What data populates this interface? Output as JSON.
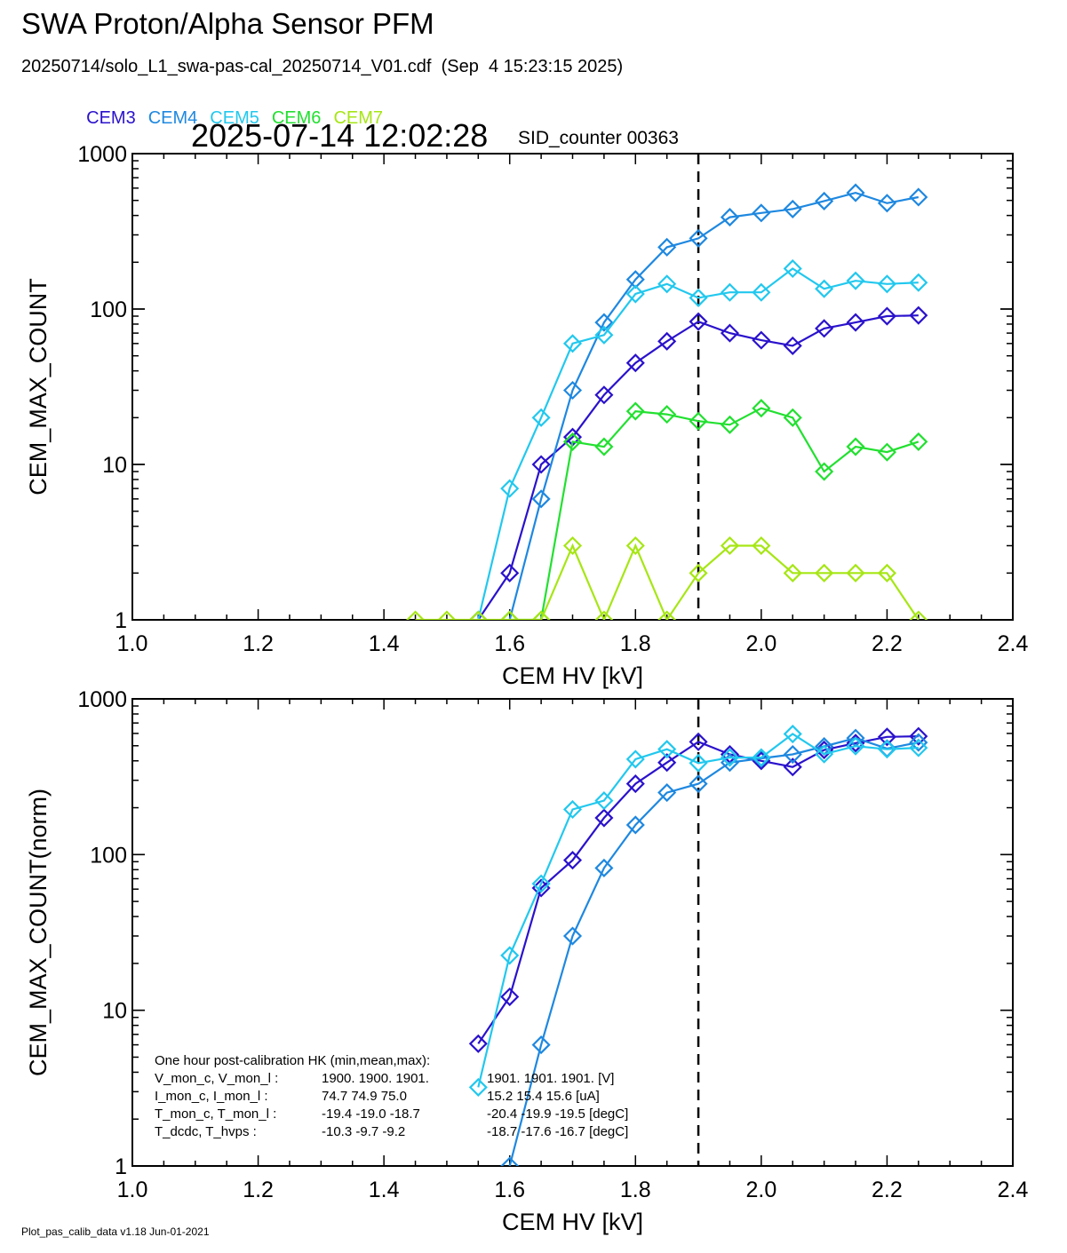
{
  "header": {
    "title": "SWA Proton/Alpha Sensor PFM",
    "subtitle": "20250714/solo_L1_swa-pas-cal_20250714_V01.cdf  (Sep  4 15:23:15 2025)",
    "timestamp": "2025-07-14 12:02:28",
    "sid_counter": "SID_counter 00363"
  },
  "legend": [
    {
      "label": "CEM3",
      "color": "#2a12cc"
    },
    {
      "label": "CEM4",
      "color": "#1e88e0"
    },
    {
      "label": "CEM5",
      "color": "#22c8ee"
    },
    {
      "label": "CEM6",
      "color": "#22e030"
    },
    {
      "label": "CEM7",
      "color": "#a6e614"
    }
  ],
  "hk_box": {
    "title": "One hour post-calibration HK (min,mean,max):",
    "rows": [
      {
        "label": "V_mon_c, V_mon_l :",
        "a": "1900.  1900.  1901.",
        "b": "1901.  1901.  1901. [V]"
      },
      {
        "label": "I_mon_c,  I_mon_l :",
        "a": "74.7   74.9   75.0",
        "b": "15.2   15.4   15.6  [uA]"
      },
      {
        "label": "T_mon_c, T_mon_l :",
        "a": "-19.4  -19.0  -18.7",
        "b": "-20.4  -19.9  -19.5  [degC]"
      },
      {
        "label": "T_dcdc,    T_hvps :",
        "a": "-10.3   -9.7   -9.2",
        "b": "-18.7  -17.6  -16.7  [degC]"
      }
    ]
  },
  "footer": "Plot_pas_calib_data v1.18 Jun-01-2021",
  "chart_data": [
    {
      "type": "line",
      "xlabel": "CEM HV [kV]",
      "ylabel": "CEM_MAX_COUNT",
      "xlim": [
        1.0,
        2.4
      ],
      "ylim": [
        1,
        1000
      ],
      "yscale": "log",
      "xticks": [
        "1.0",
        "1.2",
        "1.4",
        "1.6",
        "1.8",
        "2.0",
        "2.2",
        "2.4"
      ],
      "yticks": [
        "1",
        "10",
        "100",
        "1000"
      ],
      "vline_x": 1.9,
      "series": [
        {
          "name": "CEM3",
          "color": "#2a12cc",
          "x": [
            1.55,
            1.6,
            1.65,
            1.7,
            1.75,
            1.8,
            1.85,
            1.9,
            1.95,
            2.0,
            2.05,
            2.1,
            2.15,
            2.2,
            2.25
          ],
          "y": [
            1,
            2,
            10,
            15,
            28,
            45,
            62,
            83,
            70,
            63,
            58,
            75,
            82,
            90,
            91
          ]
        },
        {
          "name": "CEM4",
          "color": "#1e88e0",
          "x": [
            1.6,
            1.65,
            1.7,
            1.75,
            1.8,
            1.85,
            1.9,
            1.95,
            2.0,
            2.05,
            2.1,
            2.15,
            2.2,
            2.25
          ],
          "y": [
            1,
            6,
            30,
            82,
            155,
            250,
            285,
            390,
            415,
            440,
            495,
            560,
            480,
            525
          ]
        },
        {
          "name": "CEM5",
          "color": "#22c8ee",
          "x": [
            1.55,
            1.6,
            1.65,
            1.7,
            1.75,
            1.8,
            1.85,
            1.9,
            1.95,
            2.0,
            2.05,
            2.1,
            2.15,
            2.2,
            2.25
          ],
          "y": [
            1,
            7,
            20,
            60,
            68,
            125,
            145,
            118,
            128,
            128,
            182,
            135,
            152,
            145,
            148
          ]
        },
        {
          "name": "CEM6",
          "color": "#22e030",
          "x": [
            1.6,
            1.65,
            1.7,
            1.75,
            1.8,
            1.85,
            1.9,
            1.95,
            2.0,
            2.05,
            2.1,
            2.15,
            2.2,
            2.25
          ],
          "y": [
            1,
            1,
            14,
            13,
            22,
            21,
            19,
            18,
            23,
            20,
            9,
            13,
            12,
            14
          ]
        },
        {
          "name": "CEM7",
          "color": "#a6e614",
          "x": [
            1.45,
            1.5,
            1.55,
            1.6,
            1.65,
            1.7,
            1.75,
            1.8,
            1.85,
            1.9,
            1.95,
            2.0,
            2.05,
            2.1,
            2.15,
            2.2,
            2.25
          ],
          "y": [
            1,
            1,
            1,
            1,
            1,
            3,
            1,
            3,
            1,
            2,
            3,
            3,
            2,
            2,
            2,
            2,
            1
          ]
        }
      ]
    },
    {
      "type": "line",
      "xlabel": "CEM HV [kV]",
      "ylabel": "CEM_MAX_COUNT(norm)",
      "xlim": [
        1.0,
        2.4
      ],
      "ylim": [
        1,
        1000
      ],
      "yscale": "log",
      "xticks": [
        "1.0",
        "1.2",
        "1.4",
        "1.6",
        "1.8",
        "2.0",
        "2.2",
        "2.4"
      ],
      "yticks": [
        "1",
        "10",
        "100",
        "1000"
      ],
      "vline_x": 1.9,
      "series": [
        {
          "name": "CEM3",
          "color": "#2a12cc",
          "x": [
            1.55,
            1.6,
            1.65,
            1.7,
            1.75,
            1.8,
            1.85,
            1.9,
            1.95,
            2.0,
            2.05,
            2.1,
            2.15,
            2.2,
            2.25
          ],
          "y": [
            6.1,
            12.2,
            61,
            92,
            172,
            285,
            390,
            530,
            440,
            400,
            365,
            470,
            520,
            570,
            575
          ]
        },
        {
          "name": "CEM4",
          "color": "#1e88e0",
          "x": [
            1.6,
            1.65,
            1.7,
            1.75,
            1.8,
            1.85,
            1.9,
            1.95,
            2.0,
            2.05,
            2.1,
            2.15,
            2.2,
            2.25
          ],
          "y": [
            1,
            6,
            30,
            82,
            155,
            250,
            285,
            390,
            415,
            440,
            495,
            560,
            480,
            525
          ]
        },
        {
          "name": "CEM5",
          "color": "#22c8ee",
          "x": [
            1.55,
            1.6,
            1.65,
            1.7,
            1.75,
            1.8,
            1.85,
            1.9,
            1.95,
            2.0,
            2.05,
            2.1,
            2.15,
            2.2,
            2.25
          ],
          "y": [
            3.2,
            22.5,
            65,
            195,
            222,
            410,
            475,
            387,
            420,
            420,
            595,
            442,
            497,
            475,
            485
          ]
        }
      ]
    }
  ]
}
